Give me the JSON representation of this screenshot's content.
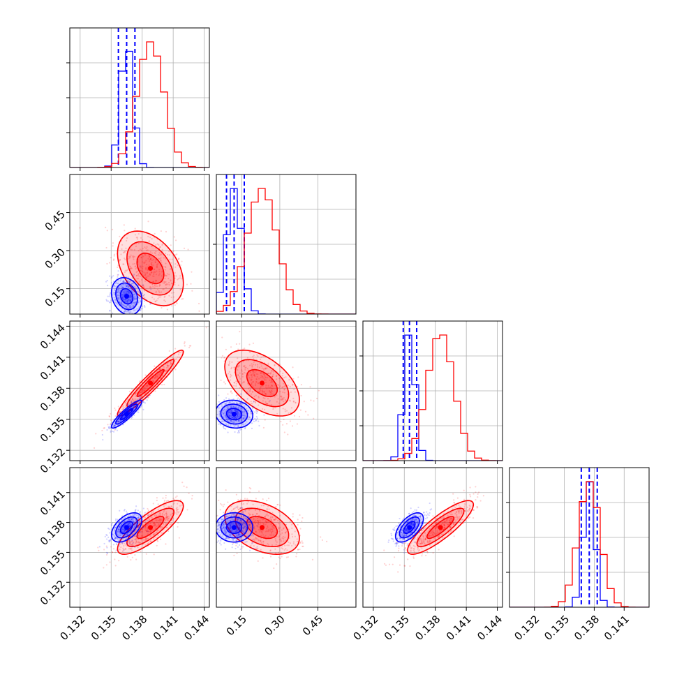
{
  "chart_data": {
    "type": "corner",
    "grid": true,
    "parameters": [
      {
        "range": [
          0.131,
          0.1445
        ],
        "ticks": [
          0.132,
          0.135,
          0.138,
          0.141,
          0.144
        ]
      },
      {
        "range": [
          0.05,
          0.6
        ],
        "ticks": [
          0.15,
          0.3,
          0.45
        ],
        "tick_labels": [
          "0.15",
          "0.30",
          "0.45"
        ]
      },
      {
        "range": [
          0.131,
          0.1445
        ],
        "ticks": [
          0.132,
          0.135,
          0.138,
          0.141,
          0.144
        ]
      },
      {
        "range": [
          0.1295,
          0.1435
        ],
        "ticks": [
          0.132,
          0.135,
          0.138,
          0.141
        ]
      }
    ],
    "x_tick_labels_bottom": [
      [
        "0.132",
        "0.135",
        "0.138",
        "0.141",
        "0.144"
      ],
      [
        "0.15",
        "0.30",
        "0.45"
      ],
      [
        "0.132",
        "0.135",
        "0.138",
        "0.141",
        "0.144"
      ],
      [
        "0.132",
        "0.135",
        "0.138",
        "0.141"
      ]
    ],
    "y_tick_labels_left": [
      null,
      [
        "0.15",
        "0.30",
        "0.45"
      ],
      [
        "0.132",
        "0.135",
        "0.138",
        "0.141",
        "0.144"
      ],
      [
        "0.132",
        "0.135",
        "0.138",
        "0.141"
      ]
    ],
    "series": [
      {
        "color": "#0000ff",
        "means": [
          0.1365,
          0.12,
          0.1355,
          0.1375
        ],
        "sds": [
          0.0006,
          0.03,
          0.00055,
          0.0006
        ],
        "quantiles": [
          [
            0.1357,
            0.1365,
            0.1373
          ],
          [
            0.09,
            0.12,
            0.16
          ],
          [
            0.1349,
            0.1355,
            0.1362
          ],
          [
            0.1367,
            0.1375,
            0.1383
          ]
        ],
        "correlations": {
          "0-1": -0.2,
          "0-2": 0.9,
          "1-2": -0.1,
          "0-3": 0.5,
          "1-3": 0.0,
          "2-3": 0.6
        }
      },
      {
        "color": "#ff0000",
        "means": [
          0.1388,
          0.23,
          0.1385,
          0.1375
        ],
        "sds": [
          0.0013,
          0.06,
          0.0013,
          0.0011
        ],
        "correlations": {
          "0-1": -0.4,
          "0-2": 0.95,
          "1-2": -0.5,
          "0-3": 0.8,
          "1-3": -0.4,
          "2-3": 0.85
        }
      }
    ]
  }
}
